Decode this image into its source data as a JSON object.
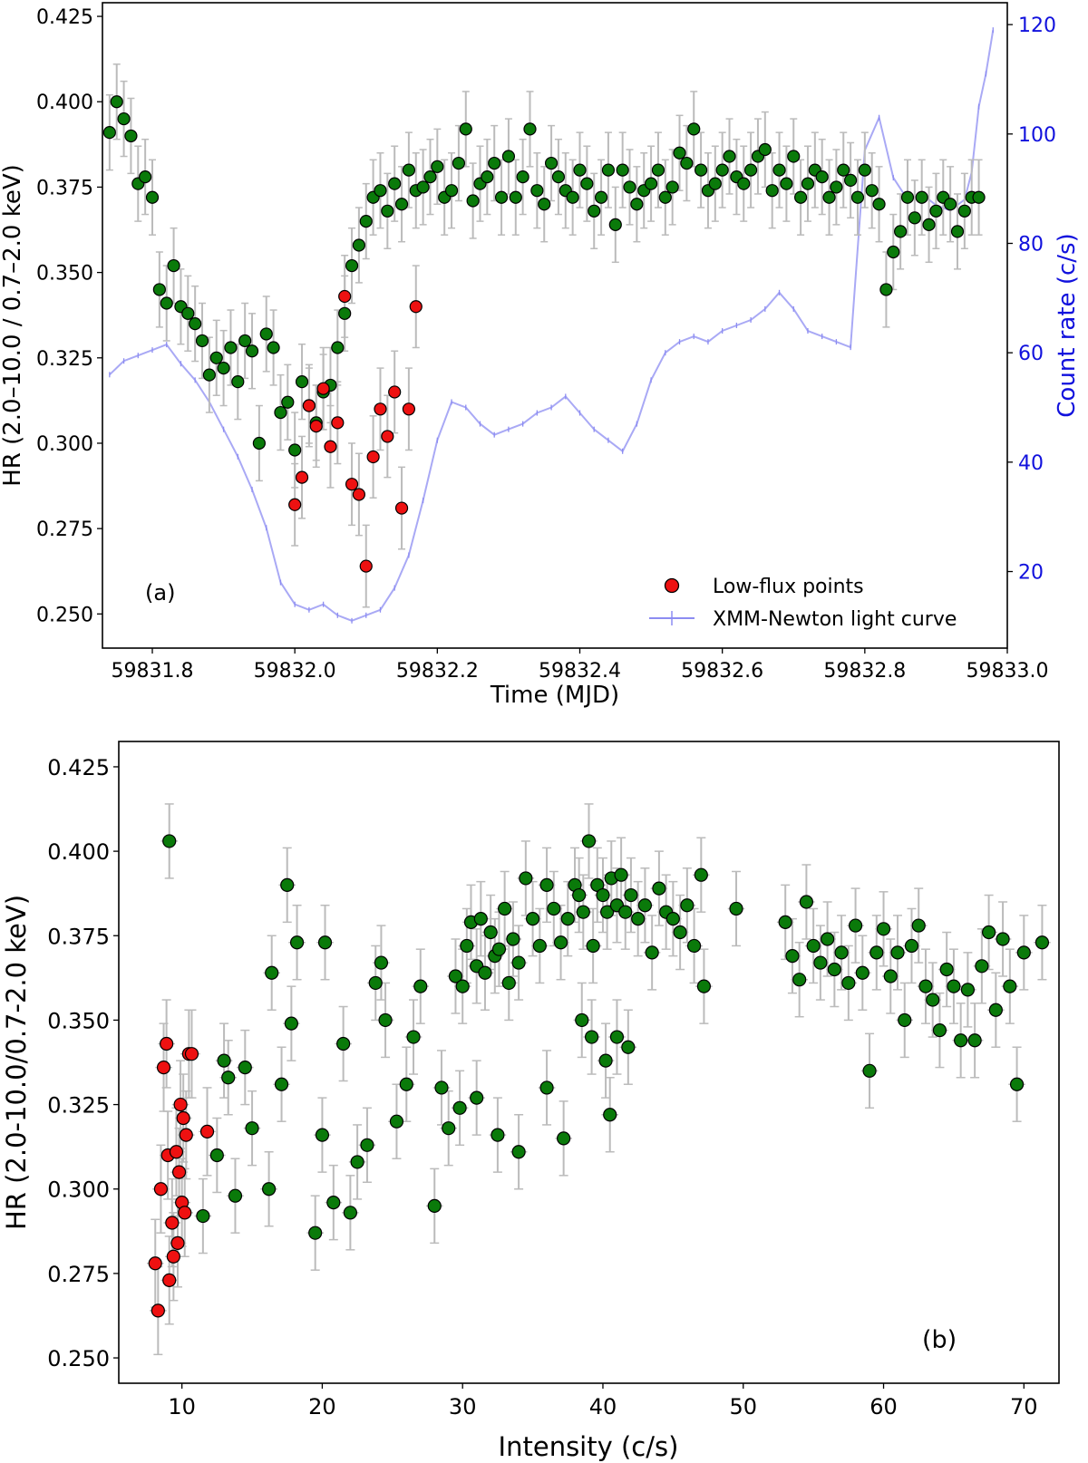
{
  "colors": {
    "normal_points": "#0a7a0a",
    "low_flux_points": "#ee1111",
    "error_bars": "#bbbbbb",
    "light_curve": "#8c8cf2",
    "right_axis": "#1111dd"
  },
  "chart_data": [
    {
      "panel": "(a)",
      "type": "scatter",
      "title": "",
      "xlabel": "Time (MJD)",
      "ylabel": "HR (2.0–10.0 / 0.7–2.0 keV)",
      "y2label": "Count rate (c/s)",
      "xlim": [
        59831.73,
        59833.0
      ],
      "ylim": [
        0.24,
        0.429
      ],
      "y2lim": [
        6,
        124
      ],
      "x_ticks": [
        59831.8,
        59832.0,
        59832.2,
        59832.4,
        59832.6,
        59832.8,
        59833.0
      ],
      "x_tick_labels": [
        "59831.8",
        "59832.0",
        "59832.2",
        "59832.4",
        "59832.6",
        "59832.8",
        "59833.0"
      ],
      "y_ticks": [
        0.25,
        0.275,
        0.3,
        0.325,
        0.35,
        0.375,
        0.4,
        0.425
      ],
      "y_tick_labels": [
        "0.250",
        "0.275",
        "0.300",
        "0.325",
        "0.350",
        "0.375",
        "0.400",
        "0.425"
      ],
      "y2_ticks": [
        20,
        40,
        60,
        80,
        100,
        120
      ],
      "y2_tick_labels": [
        "20",
        "40",
        "60",
        "80",
        "100",
        "120"
      ],
      "legend": [
        "Low-flux points",
        "XMM-Newton light curve"
      ],
      "legend_position": "lower right",
      "normal_series": {
        "name": "HR",
        "x": [
          59831.74,
          59831.75,
          59831.76,
          59831.77,
          59831.78,
          59831.79,
          59831.8,
          59831.81,
          59831.82,
          59831.83,
          59831.84,
          59831.85,
          59831.86,
          59831.87,
          59831.88,
          59831.89,
          59831.9,
          59831.91,
          59831.92,
          59831.93,
          59831.94,
          59831.95,
          59831.96,
          59831.97,
          59831.98,
          59831.99,
          59832.0,
          59832.01,
          59832.02,
          59832.03,
          59832.04,
          59832.05,
          59832.06,
          59832.07,
          59832.08,
          59832.09,
          59832.1,
          59832.11,
          59832.12,
          59832.13,
          59832.14,
          59832.15,
          59832.16,
          59832.17,
          59832.18,
          59832.19,
          59832.2,
          59832.21,
          59832.22,
          59832.23,
          59832.24,
          59832.25,
          59832.26,
          59832.27,
          59832.28,
          59832.29,
          59832.3,
          59832.31,
          59832.32,
          59832.33,
          59832.34,
          59832.35,
          59832.36,
          59832.37,
          59832.38,
          59832.39,
          59832.4,
          59832.41,
          59832.42,
          59832.43,
          59832.44,
          59832.45,
          59832.46,
          59832.47,
          59832.48,
          59832.49,
          59832.5,
          59832.51,
          59832.52,
          59832.53,
          59832.54,
          59832.55,
          59832.56,
          59832.57,
          59832.58,
          59832.59,
          59832.6,
          59832.61,
          59832.62,
          59832.63,
          59832.64,
          59832.65,
          59832.66,
          59832.67,
          59832.68,
          59832.69,
          59832.7,
          59832.71,
          59832.72,
          59832.73,
          59832.74,
          59832.75,
          59832.76,
          59832.77,
          59832.78,
          59832.79,
          59832.8,
          59832.81,
          59832.82,
          59832.83,
          59832.84,
          59832.85,
          59832.86,
          59832.87,
          59832.88,
          59832.89,
          59832.9,
          59832.91,
          59832.92,
          59832.93,
          59832.94,
          59832.95,
          59832.96
        ],
        "y": [
          0.391,
          0.4,
          0.395,
          0.39,
          0.376,
          0.378,
          0.372,
          0.345,
          0.341,
          0.352,
          0.34,
          0.338,
          0.335,
          0.33,
          0.32,
          0.325,
          0.322,
          0.328,
          0.318,
          0.33,
          0.327,
          0.3,
          0.332,
          0.328,
          0.309,
          0.312,
          0.298,
          0.318,
          0.311,
          0.306,
          0.315,
          0.317,
          0.328,
          0.338,
          0.352,
          0.358,
          0.365,
          0.372,
          0.374,
          0.368,
          0.376,
          0.37,
          0.38,
          0.374,
          0.375,
          0.378,
          0.381,
          0.372,
          0.374,
          0.382,
          0.392,
          0.371,
          0.376,
          0.378,
          0.382,
          0.372,
          0.384,
          0.372,
          0.378,
          0.392,
          0.374,
          0.37,
          0.382,
          0.378,
          0.374,
          0.372,
          0.38,
          0.376,
          0.368,
          0.372,
          0.38,
          0.364,
          0.38,
          0.375,
          0.37,
          0.374,
          0.376,
          0.38,
          0.372,
          0.375,
          0.385,
          0.382,
          0.392,
          0.38,
          0.374,
          0.376,
          0.38,
          0.384,
          0.378,
          0.376,
          0.38,
          0.384,
          0.386,
          0.374,
          0.38,
          0.376,
          0.384,
          0.372,
          0.376,
          0.38,
          0.378,
          0.372,
          0.375,
          0.38,
          0.377,
          0.372,
          0.38,
          0.374,
          0.37,
          0.345,
          0.356,
          0.362,
          0.372,
          0.366,
          0.372,
          0.364,
          0.368,
          0.372,
          0.37,
          0.362,
          0.368,
          0.372,
          0.372
        ]
      },
      "low_flux_series": {
        "name": "Low-flux points",
        "x": [
          59832.0,
          59832.01,
          59832.02,
          59832.03,
          59832.04,
          59832.05,
          59832.06,
          59832.07,
          59832.08,
          59832.09,
          59832.1,
          59832.11,
          59832.12,
          59832.13,
          59832.14,
          59832.15,
          59832.16,
          59832.17
        ],
        "y": [
          0.282,
          0.29,
          0.311,
          0.305,
          0.316,
          0.299,
          0.306,
          0.343,
          0.288,
          0.285,
          0.264,
          0.296,
          0.31,
          0.302,
          0.315,
          0.281,
          0.31,
          0.34
        ]
      },
      "light_curve": {
        "name": "XMM-Newton light curve",
        "x": [
          59831.74,
          59831.76,
          59831.78,
          59831.8,
          59831.82,
          59831.84,
          59831.86,
          59831.88,
          59831.9,
          59831.92,
          59831.94,
          59831.96,
          59831.98,
          59832.0,
          59832.02,
          59832.04,
          59832.06,
          59832.08,
          59832.1,
          59832.12,
          59832.14,
          59832.16,
          59832.18,
          59832.2,
          59832.22,
          59832.24,
          59832.26,
          59832.28,
          59832.3,
          59832.32,
          59832.34,
          59832.36,
          59832.38,
          59832.4,
          59832.42,
          59832.44,
          59832.46,
          59832.48,
          59832.5,
          59832.52,
          59832.54,
          59832.56,
          59832.58,
          59832.6,
          59832.62,
          59832.64,
          59832.66,
          59832.68,
          59832.7,
          59832.72,
          59832.74,
          59832.76,
          59832.78,
          59832.8,
          59832.82,
          59832.84,
          59832.86,
          59832.88,
          59832.9,
          59832.92,
          59832.94,
          59832.95,
          59832.96,
          59832.97,
          59832.98
        ],
        "y": [
          56,
          58.5,
          59.5,
          60.5,
          61.5,
          58,
          55,
          51,
          46,
          41,
          35,
          28,
          18,
          14,
          13,
          14,
          12,
          11,
          12,
          13,
          17,
          23,
          33,
          44,
          51,
          50,
          47,
          45,
          46,
          47,
          49,
          50,
          52,
          49,
          46,
          44,
          42,
          47,
          55,
          60,
          62,
          63,
          62,
          64,
          65,
          66,
          68,
          71,
          68,
          64,
          63,
          62,
          61,
          97,
          103,
          92,
          88,
          89,
          87,
          86,
          88,
          93,
          105,
          111,
          119
        ]
      },
      "normal_error": 0.011,
      "low_flux_error": 0.012,
      "light_curve_error": 0.7
    },
    {
      "panel": "(b)",
      "type": "scatter",
      "title": "",
      "xlabel": "Intensity (c/s)",
      "ylabel": "HR (2.0-10.0/0.7-2.0 keV)",
      "xlim": [
        5.5,
        72.5
      ],
      "ylim": [
        0.2425,
        0.4325
      ],
      "x_ticks": [
        10,
        20,
        30,
        40,
        50,
        60,
        70
      ],
      "x_tick_labels": [
        "10",
        "20",
        "30",
        "40",
        "50",
        "60",
        "70"
      ],
      "y_ticks": [
        0.25,
        0.275,
        0.3,
        0.325,
        0.35,
        0.375,
        0.4,
        0.425
      ],
      "y_tick_labels": [
        "0.250",
        "0.275",
        "0.300",
        "0.325",
        "0.350",
        "0.375",
        "0.400",
        "0.425"
      ],
      "normal_series": {
        "name": "HR vs intensity",
        "x": [
          9.1,
          11.5,
          12.5,
          13,
          13.3,
          13.8,
          14.5,
          15,
          16.2,
          16.4,
          17.1,
          17.5,
          17.8,
          18.2,
          19.5,
          20,
          20.2,
          20.8,
          21.5,
          22,
          22.5,
          23.2,
          23.8,
          24.2,
          24.5,
          25.3,
          26,
          26.5,
          27,
          28,
          28.5,
          29,
          29.5,
          30,
          30.3,
          30.6,
          31,
          31.3,
          31.6,
          32,
          32.3,
          32.6,
          33,
          33.3,
          33.6,
          34,
          34.5,
          35,
          35.5,
          36,
          36.5,
          37,
          37.5,
          38,
          38.3,
          38.6,
          39,
          39.3,
          39.6,
          40,
          40.3,
          40.6,
          41,
          41.3,
          41.6,
          42,
          42.5,
          43,
          43.5,
          44,
          44.5,
          45,
          45.5,
          46,
          46.5,
          47,
          47.2,
          49.5,
          53,
          53.5,
          54,
          54.5,
          55,
          55.5,
          56,
          56.5,
          57,
          57.5,
          58,
          58.5,
          59,
          59.5,
          60,
          60.5,
          61,
          61.5,
          62,
          62.5,
          63,
          63.5,
          64,
          64.5,
          65,
          65.5,
          66,
          66.5,
          67,
          67.5,
          68,
          68.5,
          69,
          69.5,
          70,
          71.3,
          38.5,
          39.2,
          40.2,
          41,
          41.8,
          29.8,
          31,
          32.5,
          34,
          36,
          37.2,
          40.5
        ],
        "y": [
          0.403,
          0.292,
          0.31,
          0.338,
          0.333,
          0.298,
          0.336,
          0.318,
          0.3,
          0.364,
          0.331,
          0.39,
          0.349,
          0.373,
          0.287,
          0.316,
          0.373,
          0.296,
          0.343,
          0.293,
          0.308,
          0.313,
          0.361,
          0.367,
          0.35,
          0.32,
          0.331,
          0.345,
          0.36,
          0.295,
          0.33,
          0.318,
          0.363,
          0.36,
          0.372,
          0.379,
          0.366,
          0.38,
          0.364,
          0.376,
          0.369,
          0.371,
          0.383,
          0.361,
          0.374,
          0.367,
          0.392,
          0.38,
          0.372,
          0.39,
          0.383,
          0.373,
          0.38,
          0.39,
          0.387,
          0.382,
          0.403,
          0.372,
          0.39,
          0.387,
          0.382,
          0.392,
          0.384,
          0.393,
          0.382,
          0.387,
          0.38,
          0.384,
          0.37,
          0.389,
          0.382,
          0.38,
          0.376,
          0.384,
          0.372,
          0.393,
          0.36,
          0.383,
          0.379,
          0.369,
          0.362,
          0.385,
          0.372,
          0.367,
          0.374,
          0.365,
          0.37,
          0.361,
          0.378,
          0.364,
          0.335,
          0.37,
          0.377,
          0.363,
          0.37,
          0.35,
          0.372,
          0.378,
          0.36,
          0.356,
          0.347,
          0.365,
          0.36,
          0.344,
          0.359,
          0.344,
          0.366,
          0.376,
          0.353,
          0.374,
          0.36,
          0.331,
          0.37,
          0.373,
          0.35,
          0.345,
          0.338,
          0.345,
          0.342,
          0.324,
          0.327,
          0.316,
          0.311,
          0.33,
          0.315,
          0.322
        ]
      },
      "low_flux_series": {
        "name": "Low-flux points",
        "x": [
          8.1,
          8.3,
          8.5,
          8.7,
          8.9,
          9.0,
          9.1,
          9.3,
          9.4,
          9.6,
          9.7,
          9.8,
          9.9,
          10.0,
          10.1,
          10.2,
          10.3,
          10.5,
          10.7,
          11.8
        ],
        "y": [
          0.278,
          0.264,
          0.3,
          0.336,
          0.343,
          0.31,
          0.273,
          0.29,
          0.28,
          0.311,
          0.284,
          0.305,
          0.325,
          0.296,
          0.321,
          0.293,
          0.316,
          0.34,
          0.34,
          0.317
        ]
      },
      "normal_error": 0.011,
      "low_flux_error": 0.013,
      "x_error": 0.6
    }
  ]
}
